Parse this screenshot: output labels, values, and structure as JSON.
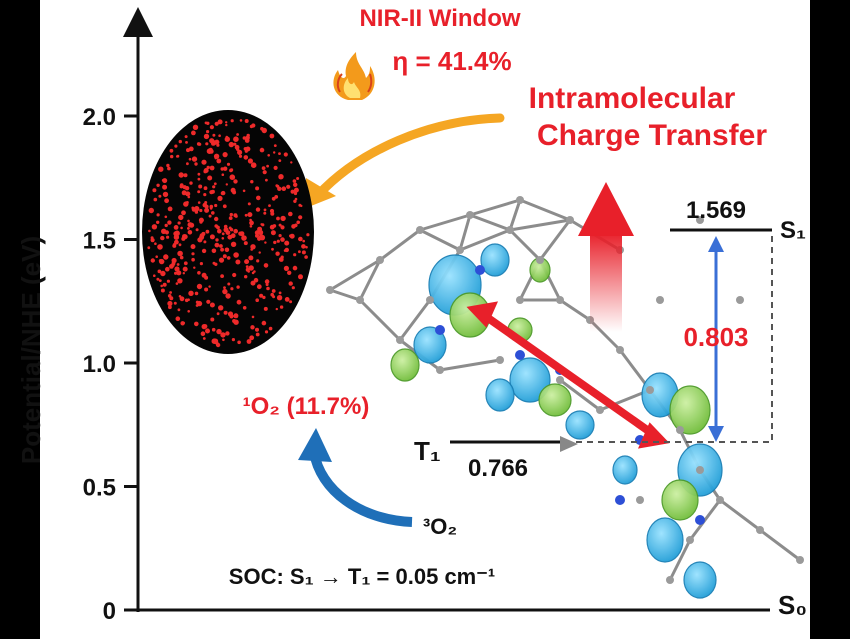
{
  "header": {
    "window_label": "NIR-II Window",
    "efficiency": "η = 41.4%"
  },
  "callouts": {
    "ict_line1": "Intramolecular",
    "ict_line2": "Charge Transfer",
    "singlet_oxygen": "¹O₂ (11.7%)",
    "triplet_oxygen": "³O₂",
    "soc": "SOC: S₁ → T₁ = 0.05 cm⁻¹"
  },
  "levels": {
    "s1_label": "S₁",
    "s1_value": "1.569",
    "t1_label": "T₁",
    "t1_value": "0.766",
    "gap_value": "0.803",
    "s0_label": "S₀"
  },
  "axis": {
    "ylabel": "Potential/NHE (eV)",
    "ticks": [
      {
        "label": "0",
        "value": 0
      },
      {
        "label": "0.5",
        "value": 0.5
      },
      {
        "label": "1.0",
        "value": 1.0
      },
      {
        "label": "1.5",
        "value": 1.5
      },
      {
        "label": "2.0",
        "value": 2.0
      }
    ]
  },
  "colors": {
    "accent_red": "#e8202a",
    "orange_arrow": "#f5a623",
    "blue_arrow": "#1f6fb8",
    "orbital_blue": "#2ab3e6",
    "orbital_green": "#8fd14f"
  }
}
